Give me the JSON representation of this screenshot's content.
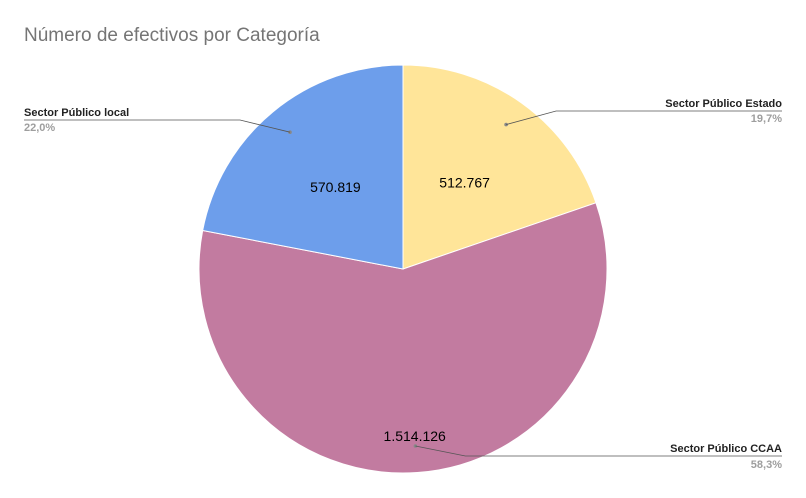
{
  "chart_data": {
    "type": "pie",
    "title": "Número de efectivos por Categoría",
    "slices": [
      {
        "label": "Sector Público Estado",
        "value": 512767,
        "value_label": "512.767",
        "percent_label": "19,7%",
        "color": "#ffe599"
      },
      {
        "label": "Sector Público CCAA",
        "value": 1514126,
        "value_label": "1.514.126",
        "percent_label": "58,3%",
        "color": "#c27ba0"
      },
      {
        "label": "Sector Público local",
        "value": 570819,
        "value_label": "570.819",
        "percent_label": "22,0%",
        "color": "#6d9eeb"
      }
    ],
    "legend": "external-labels",
    "start_angle": "12 o'clock",
    "direction": "clockwise"
  }
}
